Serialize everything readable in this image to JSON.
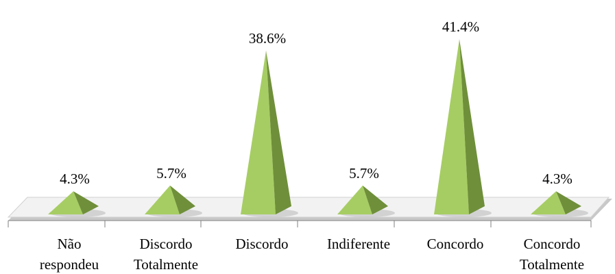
{
  "chart_data": {
    "type": "bar",
    "mark": "pyramid-3d",
    "categories": [
      [
        "Não",
        "respondeu"
      ],
      [
        "Discordo",
        "Totalmente"
      ],
      [
        "Discordo"
      ],
      [
        "Indiferente"
      ],
      [
        "Concordo"
      ],
      [
        "Concordo",
        "Totalmente"
      ]
    ],
    "values": [
      4.3,
      5.7,
      38.6,
      5.7,
      41.4,
      4.3
    ],
    "data_labels": [
      "4.3%",
      "5.7%",
      "38.6%",
      "5.7%",
      "41.4%",
      "4.3%"
    ],
    "ylim": [
      0,
      45
    ],
    "grid": false,
    "legend": "none",
    "colors": {
      "light_face": "#a6cd63",
      "dark_face": "#6f8f3a",
      "floor_fill": "#f2f2f2",
      "floor_shadow": "#c8c8c8",
      "floor_edge": "#7f7f7f"
    }
  }
}
